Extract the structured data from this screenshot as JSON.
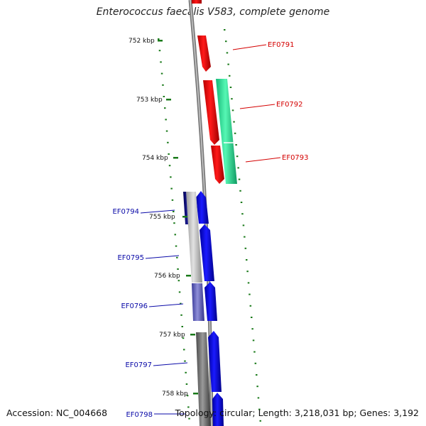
{
  "title": "Enterococcus faecalis V583, complete genome",
  "footer": {
    "accession": "Accession: NC_004668",
    "topology": "Topology: circular; Length: 3,218,031 bp; Genes: 3,192"
  },
  "kbp_labels": [
    "752 kbp",
    "753 kbp",
    "754 kbp",
    "755 kbp",
    "756 kbp",
    "757 kbp",
    "758 kbp"
  ],
  "genes": [
    {
      "id": "EF0791",
      "color": "#d40000"
    },
    {
      "id": "EF0792",
      "color": "#d40000"
    },
    {
      "id": "EF0793",
      "color": "#d40000"
    },
    {
      "id": "EF0794",
      "color": "#0a0aa8"
    },
    {
      "id": "EF0795",
      "color": "#0a0aa8"
    },
    {
      "id": "EF0796",
      "color": "#0a0aa8"
    },
    {
      "id": "EF0797",
      "color": "#0a0aa8"
    },
    {
      "id": "EF0798",
      "color": "#0a0aa8"
    }
  ],
  "colors": {
    "forward_cds": "#ff0000",
    "reverse_cds": "#0000ff",
    "green_feature": "#2ee89a",
    "scale_ticks": "#1a7a1a",
    "backbone": "#888888"
  }
}
